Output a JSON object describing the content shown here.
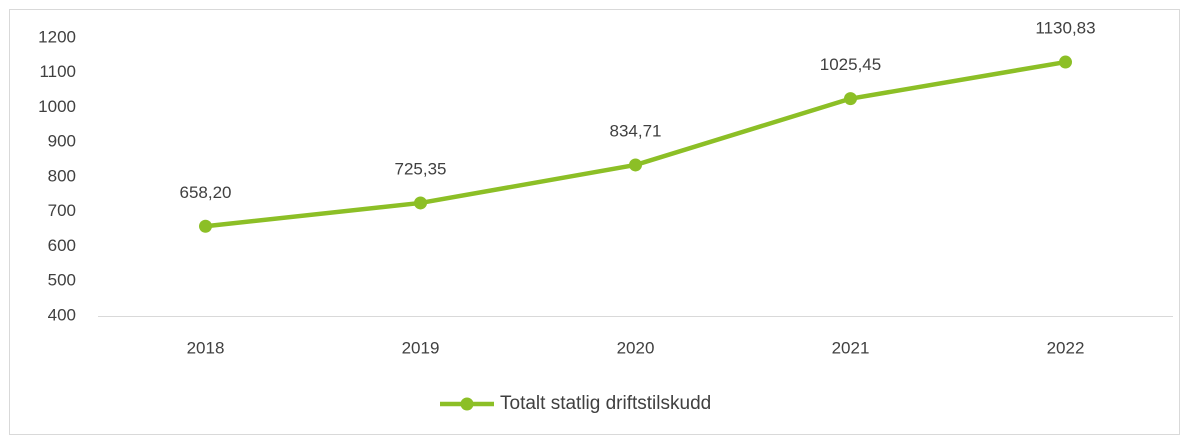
{
  "chart_data": {
    "type": "line",
    "categories": [
      "2018",
      "2019",
      "2020",
      "2021",
      "2022"
    ],
    "series": [
      {
        "name": "Totalt statlig driftstilskudd",
        "color": "#8cbf26",
        "values": [
          658.2,
          725.35,
          834.71,
          1025.45,
          1130.83
        ],
        "value_labels": [
          "658,20",
          "725,35",
          "834,71",
          "1025,45",
          "1130,83"
        ]
      }
    ],
    "ylim": [
      400,
      1200
    ],
    "yticks": [
      400,
      500,
      600,
      700,
      800,
      900,
      1000,
      1100,
      1200
    ],
    "grid": false,
    "legend": "bottom"
  }
}
